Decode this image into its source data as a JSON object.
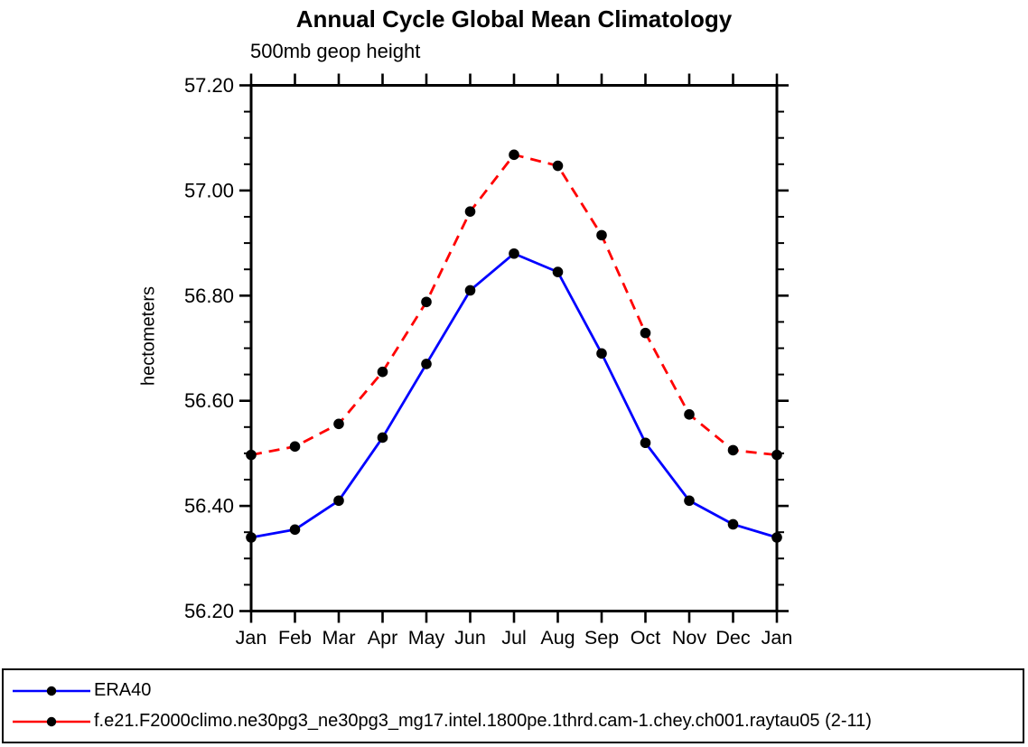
{
  "chart_data": {
    "type": "line",
    "title": "Annual Cycle Global Mean Climatology",
    "subtitle": "500mb geop height",
    "ylabel": "hectometers",
    "xlabel": "",
    "x_categories": [
      "Jan",
      "Feb",
      "Mar",
      "Apr",
      "May",
      "Jun",
      "Jul",
      "Aug",
      "Sep",
      "Oct",
      "Nov",
      "Dec",
      "Jan"
    ],
    "ylim": [
      56.2,
      57.2
    ],
    "ytick_values": [
      56.2,
      56.4,
      56.6,
      56.8,
      57.0,
      57.2
    ],
    "ytick_labels": [
      "56.20",
      "56.40",
      "56.60",
      "56.80",
      "57.00",
      "57.20"
    ],
    "ytick_minor_step": 0.05,
    "grid": false,
    "legend_position": "bottom-left-box",
    "axis_color": "#000000",
    "series": [
      {
        "name": "ERA40",
        "color": "#0000ff",
        "style": "solid",
        "marker": "circle",
        "marker_color": "#000000",
        "values": [
          56.34,
          56.355,
          56.41,
          56.53,
          56.67,
          56.81,
          56.88,
          56.845,
          56.69,
          56.52,
          56.41,
          56.365,
          56.34
        ]
      },
      {
        "name": "f.e21.F2000climo.ne30pg3_ne30pg3_mg17.intel.1800pe.1thrd.cam-1.chey.ch001.raytau05 (2-11)",
        "color": "#ff0000",
        "style": "dashed",
        "marker": "circle",
        "marker_color": "#000000",
        "values": [
          56.497,
          56.513,
          56.556,
          56.655,
          56.788,
          56.96,
          57.068,
          57.047,
          56.915,
          56.729,
          56.574,
          56.506,
          56.497
        ]
      }
    ]
  }
}
